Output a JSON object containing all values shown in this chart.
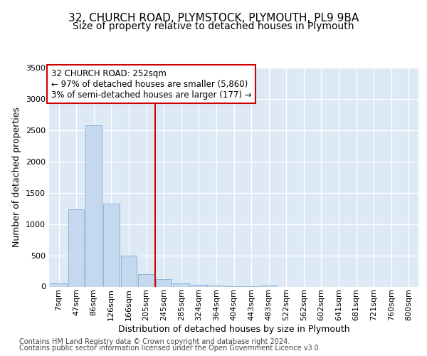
{
  "title1": "32, CHURCH ROAD, PLYMSTOCK, PLYMOUTH, PL9 9BA",
  "title2": "Size of property relative to detached houses in Plymouth",
  "xlabel": "Distribution of detached houses by size in Plymouth",
  "ylabel": "Number of detached properties",
  "bar_color": "#c5d8ee",
  "bar_edge_color": "#7bafd4",
  "categories": [
    "7sqm",
    "47sqm",
    "86sqm",
    "126sqm",
    "166sqm",
    "205sqm",
    "245sqm",
    "285sqm",
    "324sqm",
    "364sqm",
    "404sqm",
    "443sqm",
    "483sqm",
    "522sqm",
    "562sqm",
    "602sqm",
    "641sqm",
    "681sqm",
    "721sqm",
    "760sqm",
    "800sqm"
  ],
  "values": [
    50,
    1230,
    2580,
    1330,
    490,
    200,
    120,
    50,
    30,
    20,
    10,
    5,
    20,
    0,
    0,
    0,
    0,
    0,
    0,
    0,
    0
  ],
  "ylim": [
    0,
    3500
  ],
  "yticks": [
    0,
    500,
    1000,
    1500,
    2000,
    2500,
    3000,
    3500
  ],
  "vline_color": "#cc0000",
  "vline_x_idx": 6,
  "annotation_line1": "32 CHURCH ROAD: 252sqm",
  "annotation_line2": "← 97% of detached houses are smaller (5,860)",
  "annotation_line3": "3% of semi-detached houses are larger (177) →",
  "footer1": "Contains HM Land Registry data © Crown copyright and database right 2024.",
  "footer2": "Contains public sector information licensed under the Open Government Licence v3.0.",
  "fig_bg_color": "#ffffff",
  "plot_bg_color": "#dde9f5",
  "grid_color": "#ffffff",
  "title1_fontsize": 11,
  "title2_fontsize": 10,
  "axis_label_fontsize": 9,
  "tick_fontsize": 8,
  "footer_fontsize": 7,
  "annot_fontsize": 8.5
}
